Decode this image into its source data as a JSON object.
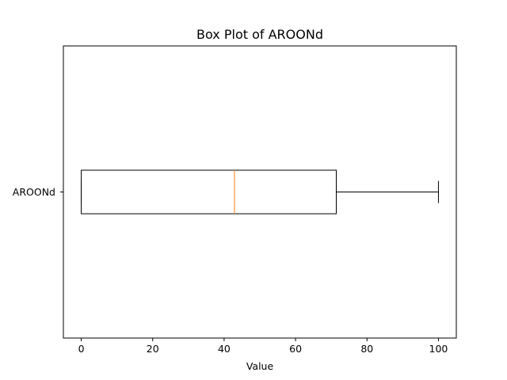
{
  "chart_data": {
    "type": "box",
    "orientation": "horizontal",
    "title": "Box Plot of AROONd",
    "xlabel": "Value",
    "ylabel": "",
    "xlim": [
      -5,
      105
    ],
    "xticks": [
      0,
      20,
      40,
      60,
      80,
      100
    ],
    "xtick_labels": [
      "0",
      "20",
      "40",
      "60",
      "80",
      "100"
    ],
    "categories": [
      "AROONd"
    ],
    "series": [
      {
        "whisker_low": 0,
        "q1": 0,
        "median": 42.9,
        "q3": 71.4,
        "whisker_high": 100
      }
    ],
    "grid": false,
    "legend": "none",
    "colors": {
      "box": "#000000",
      "median": "#ff7f0e",
      "whisker": "#000000",
      "axes": "#000000"
    }
  }
}
